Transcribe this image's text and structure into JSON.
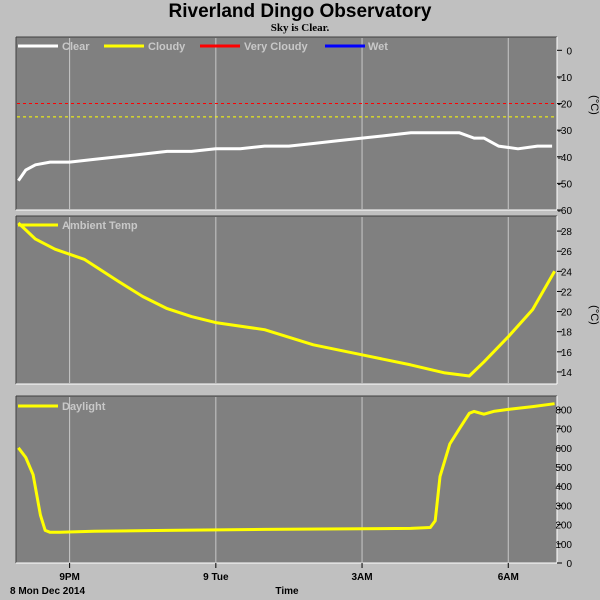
{
  "title": "Riverland Dingo Observatory",
  "subtitle": "Sky is Clear.",
  "colors": {
    "background": "#c0c0c0",
    "plot_bg": "#808080",
    "grid": "#c8c8c8",
    "clear": "#ffffff",
    "cloudy": "#ffff00",
    "very_cloudy": "#ff0000",
    "wet": "#0000ff",
    "legend_text": "#c8c8c8"
  },
  "x_axis": {
    "date_label": "8 Mon Dec 2014",
    "label": "Time",
    "ticks": [
      "9PM",
      "9 Tue",
      "3AM",
      "6AM"
    ]
  },
  "chart_data": [
    {
      "type": "line",
      "panel": "sky",
      "unit_label": "(°C)",
      "y_ticks": [
        0,
        -10,
        -20,
        -30,
        -40,
        -50,
        -60
      ],
      "ylim": [
        -60,
        5
      ],
      "xlim": [
        19.9,
        31.0
      ],
      "legend": [
        "Clear",
        "Cloudy",
        "Very Cloudy",
        "Wet"
      ],
      "thresholds": [
        {
          "name": "Very Cloudy",
          "value": -20
        },
        {
          "name": "Cloudy",
          "value": -25
        }
      ],
      "series": [
        {
          "name": "Clear",
          "x": [
            19.95,
            20.1,
            20.3,
            20.6,
            21.0,
            21.5,
            22.0,
            22.5,
            23.0,
            23.5,
            24.0,
            24.5,
            25.0,
            25.5,
            26.0,
            26.5,
            27.0,
            27.5,
            28.0,
            28.5,
            29.0,
            29.3,
            29.5,
            29.8,
            30.2,
            30.6,
            30.9
          ],
          "y": [
            -49,
            -45,
            -43,
            -42,
            -42,
            -41,
            -40,
            -39,
            -38,
            -38,
            -37,
            -37,
            -36,
            -36,
            -35,
            -34,
            -33,
            -32,
            -31,
            -31,
            -31,
            -33,
            -33,
            -36,
            -37,
            -36,
            -36
          ]
        }
      ]
    },
    {
      "type": "line",
      "panel": "ambient",
      "unit_label": "(°C)",
      "y_ticks": [
        14,
        16,
        18,
        20,
        22,
        24,
        26,
        28
      ],
      "ylim": [
        12.8,
        29.5
      ],
      "xlim": [
        19.9,
        31.0
      ],
      "legend": [
        "Ambient Temp"
      ],
      "series": [
        {
          "name": "Ambient Temp",
          "x": [
            19.95,
            20.3,
            20.7,
            21.3,
            22.0,
            22.5,
            23.0,
            23.5,
            24.0,
            25.0,
            26.0,
            27.0,
            28.0,
            28.7,
            29.2,
            29.5,
            30.0,
            30.5,
            30.95
          ],
          "y": [
            28.8,
            27.2,
            26.2,
            25.2,
            23.0,
            21.5,
            20.3,
            19.5,
            18.9,
            18.2,
            16.7,
            15.7,
            14.7,
            13.9,
            13.6,
            15.0,
            17.5,
            20.2,
            24.0
          ]
        }
      ]
    },
    {
      "type": "line",
      "panel": "daylight",
      "y_ticks": [
        0,
        100,
        200,
        300,
        400,
        500,
        600,
        700,
        800
      ],
      "ylim": [
        0,
        870
      ],
      "xlim": [
        19.9,
        31.0
      ],
      "legend": [
        "Daylight"
      ],
      "series": [
        {
          "name": "Daylight",
          "x": [
            19.95,
            20.1,
            20.25,
            20.4,
            20.5,
            20.6,
            20.8,
            21.5,
            23.0,
            25.0,
            27.0,
            28.0,
            28.4,
            28.5,
            28.6,
            28.8,
            29.0,
            29.2,
            29.3,
            29.5,
            29.7,
            30.0,
            30.5,
            30.95
          ],
          "y": [
            600,
            550,
            460,
            250,
            170,
            160,
            160,
            165,
            170,
            175,
            178,
            180,
            185,
            220,
            450,
            620,
            700,
            780,
            790,
            775,
            790,
            800,
            815,
            830
          ]
        }
      ]
    }
  ]
}
